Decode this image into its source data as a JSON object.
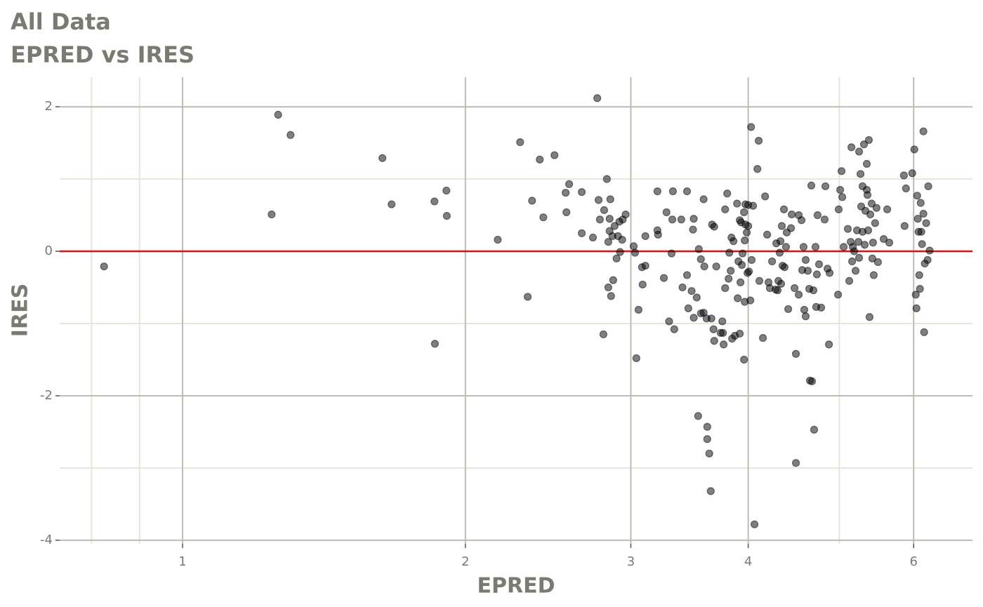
{
  "chart_data": {
    "type": "scatter",
    "title": "All Data",
    "subtitle": "EPRED vs IRES",
    "x_label": "EPRED",
    "y_label": "IRES",
    "x_log": true,
    "xlim": [
      0.74,
      6.93
    ],
    "xticks": [
      1,
      2,
      3,
      4,
      6
    ],
    "xminor": [
      0.8,
      0.9,
      5
    ],
    "ylim": [
      -4.05,
      2.41
    ],
    "yticks": [
      -4,
      -2,
      0,
      2
    ],
    "yminor": [
      -3,
      -1,
      1
    ],
    "grid": true,
    "reference_line": {
      "y": 0,
      "color": "#dd1111"
    },
    "color": "rgba(0,0,0,0.5)",
    "x": [
      0.825,
      1.244,
      1.264,
      1.303,
      1.632,
      1.669,
      1.854,
      1.856,
      1.909,
      1.911,
      2.165,
      2.287,
      2.33,
      2.355,
      2.4,
      2.421,
      2.488,
      2.557,
      2.562,
      2.579,
      2.66,
      2.66,
      2.734,
      2.763,
      2.772,
      2.781,
      2.81,
      2.805,
      2.829,
      2.839,
      2.839,
      2.848,
      2.848,
      2.858,
      2.853,
      2.868,
      2.873,
      2.883,
      2.897,
      2.907,
      2.917,
      2.922,
      2.937,
      2.941,
      2.962,
      3.021,
      3.031,
      3.041,
      3.057,
      3.083,
      3.088,
      3.109,
      3.109,
      3.202,
      3.202,
      3.207,
      3.253,
      3.274,
      3.295,
      3.315,
      3.321,
      3.326,
      3.337,
      3.395,
      3.405,
      3.443,
      3.443,
      3.454,
      3.482,
      3.494,
      3.5,
      3.5,
      3.526,
      3.538,
      3.544,
      3.562,
      3.562,
      3.586,
      3.586,
      3.592,
      3.612,
      3.618,
      3.618,
      3.636,
      3.649,
      3.655,
      3.661,
      3.674,
      3.68,
      3.68,
      3.699,
      3.739,
      3.754,
      3.76,
      3.766,
      3.78,
      3.78,
      3.799,
      3.812,
      3.819,
      3.832,
      3.839,
      3.845,
      3.858,
      3.871,
      3.892,
      3.898,
      3.905,
      3.918,
      3.918,
      3.925,
      3.931,
      3.938,
      3.945,
      3.959,
      3.959,
      3.966,
      3.966,
      3.973,
      3.973,
      3.986,
      3.993,
      4.0,
      4.0,
      4.007,
      4.021,
      4.028,
      4.034,
      4.048,
      4.062,
      4.091,
      4.104,
      4.111,
      4.147,
      4.169,
      4.19,
      4.204,
      4.218,
      4.241,
      4.278,
      4.285,
      4.299,
      4.307,
      4.321,
      4.329,
      4.336,
      4.343,
      4.351,
      4.366,
      4.373,
      4.388,
      4.396,
      4.412,
      4.442,
      4.45,
      4.481,
      4.496,
      4.496,
      4.527,
      4.527,
      4.558,
      4.566,
      4.581,
      4.589,
      4.605,
      4.605,
      4.629,
      4.645,
      4.653,
      4.669,
      4.677,
      4.693,
      4.701,
      4.717,
      4.725,
      4.733,
      4.741,
      4.758,
      4.783,
      4.824,
      4.833,
      4.858,
      4.875,
      4.883,
      4.985,
      4.993,
      5.011,
      5.028,
      5.037,
      5.054,
      5.106,
      5.124,
      5.142,
      5.151,
      5.16,
      5.169,
      5.186,
      5.204,
      5.222,
      5.24,
      5.249,
      5.249,
      5.267,
      5.276,
      5.294,
      5.294,
      5.312,
      5.321,
      5.331,
      5.349,
      5.349,
      5.358,
      5.367,
      5.376,
      5.385,
      5.395,
      5.413,
      5.422,
      5.431,
      5.441,
      5.459,
      5.478,
      5.497,
      5.575,
      5.623,
      5.652,
      5.858,
      5.868,
      5.888,
      5.979,
      6.01,
      6.031,
      6.041,
      6.052,
      6.062,
      6.072,
      6.083,
      6.093,
      6.104,
      6.114,
      6.124,
      6.145,
      6.145,
      6.156,
      6.166,
      6.187,
      6.208,
      6.219,
      6.24
    ],
    "values": [
      -0.21,
      0.51,
      1.89,
      1.61,
      1.29,
      0.65,
      0.69,
      -1.28,
      0.84,
      0.49,
      0.16,
      1.51,
      -0.63,
      0.7,
      1.27,
      0.47,
      1.33,
      0.81,
      0.54,
      0.93,
      0.82,
      0.25,
      0.19,
      2.12,
      0.71,
      0.44,
      0.57,
      -1.15,
      1.0,
      0.13,
      -0.5,
      0.28,
      0.45,
      -0.62,
      0.72,
      0.21,
      -0.4,
      0.35,
      -0.1,
      0.21,
      0.41,
      -0.01,
      0.16,
      0.44,
      0.51,
      0.07,
      -0.02,
      -1.48,
      -0.81,
      -0.22,
      -0.46,
      -0.2,
      0.21,
      0.29,
      0.83,
      0.23,
      -0.37,
      0.54,
      -0.97,
      -0.03,
      0.44,
      0.83,
      -1.08,
      0.44,
      -0.5,
      -0.33,
      0.83,
      -0.79,
      -0.55,
      0.3,
      -0.92,
      0.45,
      -0.64,
      -2.28,
      0.03,
      -0.11,
      -0.86,
      -0.85,
      0.72,
      -0.21,
      -0.93,
      -2.43,
      -2.6,
      -2.8,
      -3.32,
      -0.93,
      0.37,
      -1.08,
      0.34,
      -1.24,
      -0.21,
      -1.13,
      -0.97,
      -1.13,
      -1.29,
      0.58,
      -0.51,
      0.8,
      -0.38,
      -0.02,
      -0.27,
      0.19,
      -1.21,
      0.14,
      -1.17,
      0.66,
      -0.65,
      -0.14,
      -1.14,
      0.43,
      -0.43,
      0.4,
      -0.19,
      -0.03,
      0.54,
      -1.5,
      0.15,
      -0.7,
      0.65,
      0.37,
      0.26,
      -0.3,
      0.64,
      0.35,
      -0.28,
      -0.68,
      1.72,
      -0.12,
      0.63,
      -3.78,
      1.14,
      1.53,
      -0.41,
      -1.2,
      0.76,
      0.23,
      -0.43,
      -0.51,
      -0.14,
      -0.53,
      0.11,
      -0.54,
      -0.41,
      -0.02,
      0.14,
      -0.45,
      0.35,
      -0.2,
      0.58,
      -0.22,
      0.06,
      0.26,
      -0.8,
      0.32,
      0.51,
      -0.51,
      -1.42,
      -2.93,
      -0.6,
      0.5,
      0.43,
      -0.26,
      0.06,
      -0.81,
      -0.9,
      -0.12,
      -0.27,
      -0.52,
      -1.79,
      0.91,
      -1.8,
      -0.54,
      -2.47,
      0.06,
      -0.77,
      -0.32,
      0.5,
      -0.18,
      -0.78,
      0.44,
      0.9,
      -0.24,
      -1.29,
      -0.3,
      -0.6,
      0.58,
      0.85,
      1.11,
      0.75,
      0.06,
      0.31,
      -0.41,
      0.13,
      1.44,
      -0.14,
      0.06,
      0.0,
      -0.27,
      0.29,
      0.13,
      1.38,
      -0.09,
      1.07,
      0.62,
      0.9,
      0.27,
      1.48,
      0.09,
      0.56,
      1.21,
      0.85,
      0.78,
      0.29,
      1.54,
      -0.91,
      0.51,
      0.66,
      -0.1,
      0.12,
      -0.33,
      0.39,
      0.6,
      -0.15,
      0.17,
      0.58,
      0.12,
      1.05,
      0.35,
      0.87,
      1.08,
      1.41,
      -0.6,
      -0.79,
      0.77,
      0.45,
      0.27,
      -0.33,
      -0.52,
      0.67,
      0.27,
      0.1,
      1.66,
      0.52,
      -1.12,
      -0.17,
      0.39,
      -0.12,
      0.9,
      0.01
    ]
  }
}
